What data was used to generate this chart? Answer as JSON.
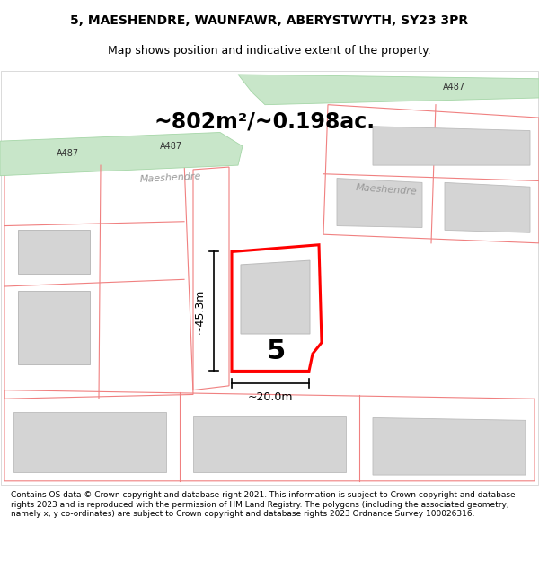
{
  "title_line1": "5, MAESHENDRE, WAUNFAWR, ABERYSTWYTH, SY23 3PR",
  "title_line2": "Map shows position and indicative extent of the property.",
  "footer_text": "Contains OS data © Crown copyright and database right 2021. This information is subject to Crown copyright and database rights 2023 and is reproduced with the permission of HM Land Registry. The polygons (including the associated geometry, namely x, y co-ordinates) are subject to Crown copyright and database rights 2023 Ordnance Survey 100026316.",
  "map_area_color": "#ffffff",
  "road_fill_color": "#c8e6c9",
  "road_outline_color": "#a5d6a7",
  "plot_outline_color": "#ff0000",
  "building_fill_color": "#d4d4d4",
  "building_outline_color": "#bbbbbb",
  "parcel_outline_color": "#f08080",
  "area_text": "~802m²/~0.198ac.",
  "dim_width": "~20.0m",
  "dim_height": "~45.3m",
  "plot_number": "5"
}
